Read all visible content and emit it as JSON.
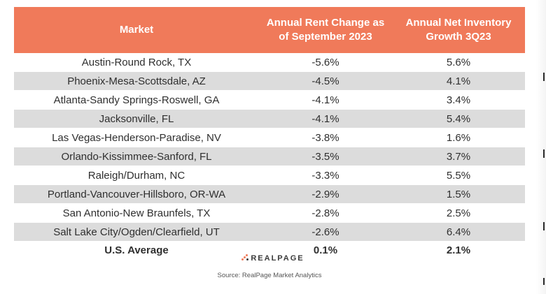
{
  "table": {
    "headers": {
      "market": "Market",
      "rent_change": "Annual Rent Change as of September 2023",
      "inventory_growth": "Annual Net Inventory Growth 3Q23"
    },
    "rows": [
      {
        "market": "Austin-Round Rock, TX",
        "rent_change": "-5.6%",
        "inventory_growth": "5.6%"
      },
      {
        "market": "Phoenix-Mesa-Scottsdale, AZ",
        "rent_change": "-4.5%",
        "inventory_growth": "4.1%"
      },
      {
        "market": "Atlanta-Sandy Springs-Roswell, GA",
        "rent_change": "-4.1%",
        "inventory_growth": "3.4%"
      },
      {
        "market": "Jacksonville, FL",
        "rent_change": "-4.1%",
        "inventory_growth": "5.4%"
      },
      {
        "market": "Las Vegas-Henderson-Paradise, NV",
        "rent_change": "-3.8%",
        "inventory_growth": "1.6%"
      },
      {
        "market": "Orlando-Kissimmee-Sanford, FL",
        "rent_change": "-3.5%",
        "inventory_growth": "3.7%"
      },
      {
        "market": "Raleigh/Durham, NC",
        "rent_change": "-3.3%",
        "inventory_growth": "5.5%"
      },
      {
        "market": "Portland-Vancouver-Hillsboro, OR-WA",
        "rent_change": "-2.9%",
        "inventory_growth": "1.5%"
      },
      {
        "market": "San Antonio-New Braunfels, TX",
        "rent_change": "-2.8%",
        "inventory_growth": "2.5%"
      },
      {
        "market": "Salt Lake City/Ogden/Clearfield, UT",
        "rent_change": "-2.6%",
        "inventory_growth": "6.4%"
      }
    ],
    "average": {
      "market": "U.S. Average",
      "rent_change": "0.1%",
      "inventory_growth": "2.1%"
    }
  },
  "logo_text": "REALPAGE",
  "source_text": "Source: RealPage Market Analytics",
  "colors": {
    "header_bg": "#f07a5a",
    "header_text": "#ffffff",
    "shaded_row": "#dcdcdc",
    "body_text": "#2f2f2f"
  }
}
